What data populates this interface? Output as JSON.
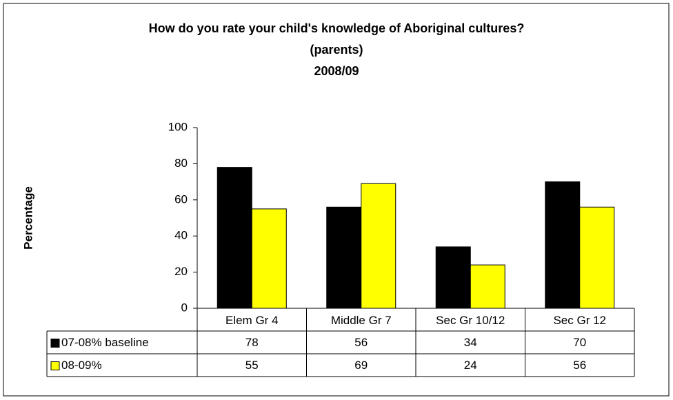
{
  "chart_data": {
    "type": "bar",
    "title": [
      "How do you rate your child's knowledge of Aboriginal cultures?",
      "(parents)",
      "2008/09"
    ],
    "y_label": "Percentage",
    "categories": [
      "Elem Gr 4",
      "Middle Gr 7",
      "Sec Gr 10/12",
      "Sec Gr 12"
    ],
    "series": [
      {
        "name": "07-08% baseline",
        "color": "#000000",
        "values": [
          78,
          56,
          34,
          70
        ]
      },
      {
        "name": "08-09%",
        "color": "#ffff00",
        "values": [
          55,
          69,
          24,
          56
        ]
      }
    ],
    "ylim": [
      0,
      100
    ],
    "yticks": [
      0,
      20,
      40,
      60,
      80,
      100
    ],
    "data_table": true
  }
}
